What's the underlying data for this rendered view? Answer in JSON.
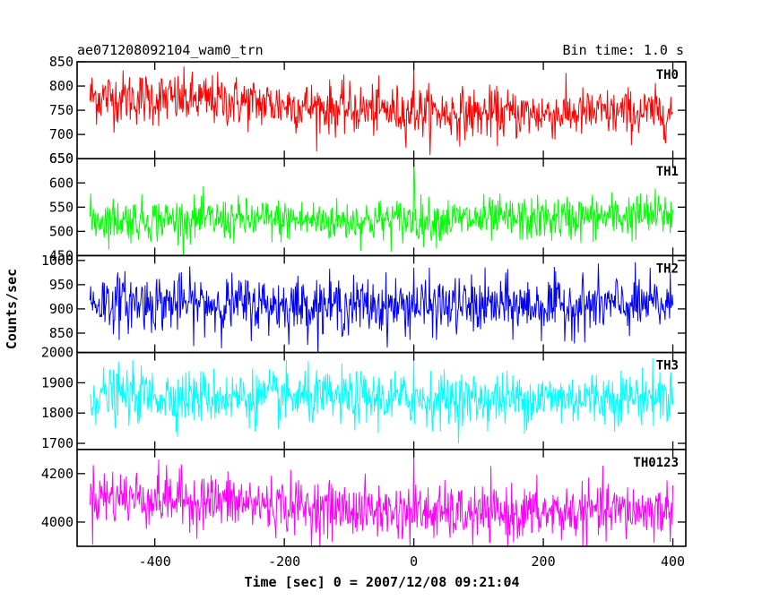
{
  "header": {
    "title": "ae071208092104_wam0_trn",
    "bin_time": "Bin time: 1.0 s"
  },
  "chart_data": {
    "type": "line",
    "xlabel": "Time [sec] 0 = 2007/12/08 09:21:04",
    "ylabel": "Counts/sec",
    "xlim": [
      -520,
      420
    ],
    "x_ticks": [
      -400,
      -200,
      0,
      200,
      400
    ],
    "x_range_data": [
      -500,
      400
    ],
    "bin_time_s": 1.0,
    "panels": [
      {
        "name": "TH0",
        "color": "#ff0000",
        "ylim": [
          650,
          850
        ],
        "y_ticks": [
          650,
          700,
          750,
          800,
          850
        ],
        "segments": [
          {
            "x": -500,
            "mean": 778,
            "sd": 28
          },
          {
            "x": -300,
            "mean": 770,
            "sd": 27
          },
          {
            "x": -100,
            "mean": 752,
            "sd": 26
          },
          {
            "x": 100,
            "mean": 742,
            "sd": 26
          },
          {
            "x": 400,
            "mean": 745,
            "sd": 25
          }
        ],
        "spikes": [
          {
            "x": 0,
            "value": 850
          }
        ]
      },
      {
        "name": "TH1",
        "color": "#00ff00",
        "ylim": [
          450,
          650
        ],
        "y_ticks": [
          450,
          500,
          550,
          600,
          650
        ],
        "segments": [
          {
            "x": -500,
            "mean": 525,
            "sd": 22
          },
          {
            "x": -100,
            "mean": 522,
            "sd": 22
          },
          {
            "x": 200,
            "mean": 525,
            "sd": 23
          },
          {
            "x": 400,
            "mean": 535,
            "sd": 24
          }
        ],
        "spikes": [
          {
            "x": 0,
            "value": 650
          },
          {
            "x": 1,
            "value": 610
          }
        ]
      },
      {
        "name": "TH2",
        "color": "#0000ff",
        "ylim": [
          810,
          1010
        ],
        "y_ticks": [
          850,
          900,
          950,
          1000
        ],
        "segments": [
          {
            "x": -500,
            "mean": 915,
            "sd": 30
          },
          {
            "x": -300,
            "mean": 910,
            "sd": 29
          },
          {
            "x": 0,
            "mean": 905,
            "sd": 29
          },
          {
            "x": 400,
            "mean": 908,
            "sd": 30
          }
        ],
        "spikes": [
          {
            "x": 0,
            "value": 985
          }
        ]
      },
      {
        "name": "TH3",
        "color": "#00ffff",
        "ylim": [
          1680,
          2000
        ],
        "y_ticks": [
          1700,
          1800,
          1900,
          2000
        ],
        "segments": [
          {
            "x": -500,
            "mean": 1860,
            "sd": 45
          },
          {
            "x": -200,
            "mean": 1850,
            "sd": 44
          },
          {
            "x": 100,
            "mean": 1845,
            "sd": 44
          },
          {
            "x": 400,
            "mean": 1855,
            "sd": 45
          }
        ],
        "spikes": [
          {
            "x": 0,
            "value": 1985
          }
        ]
      },
      {
        "name": "TH0123",
        "color": "#ff00ff",
        "ylim": [
          3900,
          4300
        ],
        "y_ticks": [
          4000,
          4200
        ],
        "segments": [
          {
            "x": -500,
            "mean": 4110,
            "sd": 60
          },
          {
            "x": -300,
            "mean": 4085,
            "sd": 58
          },
          {
            "x": -100,
            "mean": 4050,
            "sd": 56
          },
          {
            "x": 100,
            "mean": 4030,
            "sd": 56
          },
          {
            "x": 400,
            "mean": 4050,
            "sd": 58
          }
        ],
        "spikes": [
          {
            "x": 0,
            "value": 4300
          }
        ]
      }
    ]
  }
}
